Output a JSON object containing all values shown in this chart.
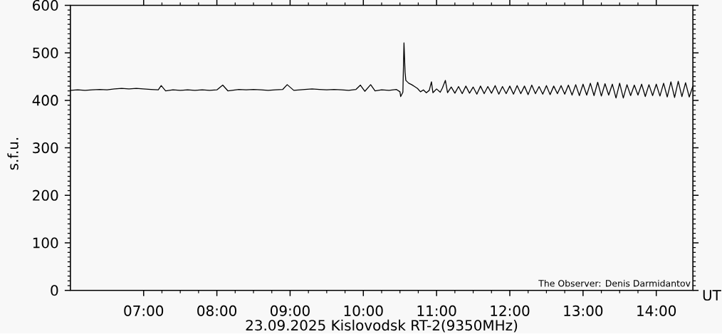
{
  "chart_data": {
    "type": "line",
    "xlabel": "23.09.2025 Kislovodsk RT-2(9350MHz)",
    "ylabel": "s.f.u.",
    "annotations": [
      "UT",
      "The Observer: Denis Darmidantov"
    ],
    "x": [
      6,
      6.1,
      6.2,
      6.3,
      6.4,
      6.5,
      6.6,
      6.7,
      6.8,
      6.9,
      7,
      7.1,
      7.2,
      7.24,
      7.3,
      7.4,
      7.5,
      7.6,
      7.7,
      7.8,
      7.9,
      8,
      8.08,
      8.15,
      8.3,
      8.4,
      8.5,
      8.6,
      8.7,
      8.8,
      8.9,
      8.96,
      9.05,
      9.2,
      9.3,
      9.4,
      9.5,
      9.6,
      9.7,
      9.8,
      9.9,
      9.96,
      10.02,
      10.1,
      10.16,
      10.25,
      10.35,
      10.45,
      10.5,
      10.51,
      10.54,
      10.555,
      10.57,
      10.58,
      10.62,
      10.66,
      10.7,
      10.74,
      10.78,
      10.82,
      10.86,
      10.9,
      10.93,
      10.95,
      11,
      11.05,
      11.08,
      11.12,
      11.15,
      11.2,
      11.25,
      11.3,
      11.35,
      11.4,
      11.45,
      11.5,
      11.55,
      11.6,
      11.65,
      11.7,
      11.75,
      11.8,
      11.85,
      11.9,
      11.95,
      12,
      12.05,
      12.1,
      12.15,
      12.2,
      12.25,
      12.3,
      12.35,
      12.4,
      12.45,
      12.5,
      12.55,
      12.6,
      12.65,
      12.7,
      12.75,
      12.8,
      12.85,
      12.9,
      12.95,
      13,
      13.05,
      13.1,
      13.15,
      13.2,
      13.25,
      13.3,
      13.35,
      13.4,
      13.45,
      13.5,
      13.55,
      13.6,
      13.65,
      13.7,
      13.75,
      13.8,
      13.85,
      13.9,
      13.95,
      14,
      14.05,
      14.1,
      14.15,
      14.2,
      14.25,
      14.3,
      14.35,
      14.4,
      14.45,
      14.5
    ],
    "series": [
      {
        "color": "#000000",
        "values": [
          421,
          422,
          421,
          422,
          423,
          422,
          424,
          425,
          424,
          425,
          424,
          423,
          422,
          431,
          420,
          422,
          421,
          422,
          421,
          422,
          421,
          422,
          432,
          420,
          423,
          422,
          423,
          422,
          421,
          422,
          423,
          433,
          421,
          423,
          424,
          423,
          422,
          423,
          422,
          421,
          423,
          432,
          419,
          433,
          420,
          422,
          421,
          423,
          418,
          408,
          417,
          521,
          459,
          442,
          436,
          433,
          429,
          425,
          418,
          422,
          416,
          421,
          439,
          416,
          424,
          417,
          426,
          442,
          416,
          428,
          415,
          429,
          414,
          430,
          415,
          428,
          413,
          430,
          414,
          429,
          415,
          431,
          413,
          429,
          414,
          430,
          413,
          431,
          414,
          430,
          412,
          432,
          414,
          429,
          413,
          431,
          412,
          430,
          414,
          431,
          413,
          432,
          411,
          433,
          410,
          434,
          411,
          436,
          410,
          438,
          409,
          435,
          411,
          434,
          405,
          436,
          405,
          433,
          410,
          432,
          411,
          434,
          408,
          433,
          410,
          434,
          409,
          436,
          407,
          439,
          406,
          440,
          408,
          437,
          407,
          430
        ]
      }
    ],
    "xlim": [
      6,
      14.5
    ],
    "ylim": [
      0,
      600
    ],
    "xticks": [
      {
        "value": 7,
        "label": "07:00"
      },
      {
        "value": 8,
        "label": "08:00"
      },
      {
        "value": 9,
        "label": "09:00"
      },
      {
        "value": 10,
        "label": "10:00"
      },
      {
        "value": 11,
        "label": "11:00"
      },
      {
        "value": 12,
        "label": "12:00"
      },
      {
        "value": 13,
        "label": "13:00"
      },
      {
        "value": 14,
        "label": "14:00"
      }
    ],
    "yticks": [
      0,
      100,
      200,
      300,
      400,
      500,
      600
    ],
    "grid": false,
    "marker": "none",
    "line_style": "solid"
  }
}
